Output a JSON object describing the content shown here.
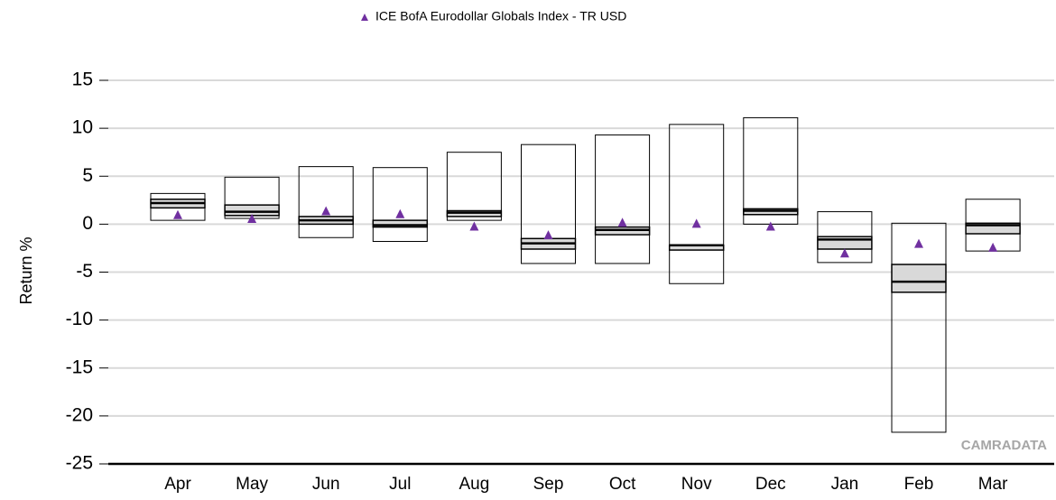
{
  "chart_data": {
    "type": "floating-box",
    "y_label": "Return %",
    "watermark": "CAMRADATA",
    "categories": [
      "Apr",
      "May",
      "Jun",
      "Jul",
      "Aug",
      "Sep",
      "Oct",
      "Nov",
      "Dec",
      "Jan",
      "Feb",
      "Mar"
    ],
    "high": [
      3.2,
      4.9,
      6.0,
      5.9,
      7.5,
      8.3,
      9.3,
      10.4,
      11.1,
      1.3,
      0.1,
      2.6
    ],
    "upper": [
      2.6,
      2.0,
      0.8,
      0.4,
      1.4,
      -1.5,
      -0.3,
      -2.2,
      1.6,
      -1.3,
      -4.2,
      0.1
    ],
    "median": [
      2.2,
      1.3,
      0.4,
      -0.1,
      1.2,
      -2.0,
      -0.6,
      -2.2,
      1.4,
      -1.6,
      -6.0,
      -0.1
    ],
    "lower": [
      1.7,
      0.9,
      0.0,
      -0.3,
      0.8,
      -2.6,
      -1.1,
      -2.7,
      1.0,
      -2.6,
      -7.1,
      -1.0
    ],
    "low": [
      0.4,
      0.6,
      -1.4,
      -1.8,
      0.4,
      -4.1,
      -4.1,
      -6.2,
      0.0,
      -4.0,
      -21.7,
      -2.8
    ],
    "series": [
      {
        "name": "ICE BofA Eurodollar Globals Index - TR USD",
        "color": "#7030a0",
        "values": [
          1.0,
          0.6,
          1.4,
          1.1,
          -0.2,
          -1.1,
          0.2,
          0.1,
          -0.2,
          -3.0,
          -2.0,
          -2.4
        ]
      }
    ],
    "box_color": "#d9d9d9",
    "ylim": [
      -25,
      15
    ],
    "yticks": [
      -25,
      -20,
      -15,
      -10,
      -5,
      0,
      5,
      10,
      15
    ],
    "grid": true
  }
}
